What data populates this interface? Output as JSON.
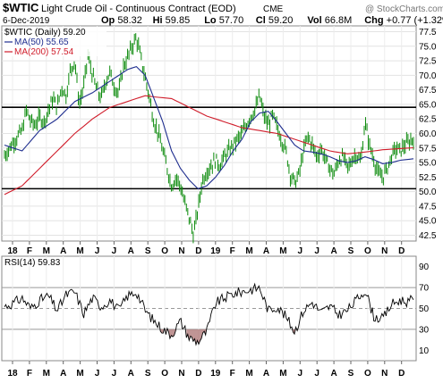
{
  "header": {
    "ticker": "$WTIC",
    "name": "Light Crude Oil - Continuous Contract (EOD)",
    "exchange": "CME",
    "date": "6-Dec-2019",
    "watermark": "@ StockCharts.com",
    "stats": [
      {
        "k": "Op",
        "v": "58.32"
      },
      {
        "k": "Hi",
        "v": "59.85"
      },
      {
        "k": "Lo",
        "v": "57.70"
      },
      {
        "k": "Cl",
        "v": "59.20"
      },
      {
        "k": "Vol",
        "v": "66.8M"
      },
      {
        "k": "Chg",
        "v": "+0.77 (+1.32%)"
      }
    ]
  },
  "colors": {
    "price": "#0b8a0b",
    "ma50": "#1f2e8f",
    "ma200": "#d01c2a",
    "rsi": "#000000",
    "rsi_fill_low": "#b07b7b"
  },
  "chart_data": [
    {
      "type": "line",
      "title": "$WTIC (Daily) 59.20",
      "ylim": [
        41.5,
        78.5
      ],
      "yticks": [
        "42.5",
        "45.0",
        "47.5",
        "50.0",
        "52.5",
        "55.0",
        "57.5",
        "60.0",
        "62.5",
        "65.0",
        "67.5",
        "70.0",
        "72.5",
        "75.0",
        "77.5"
      ],
      "xtick_labels": [
        "18",
        "F",
        "M",
        "A",
        "M",
        "J",
        "J",
        "A",
        "S",
        "O",
        "N",
        "D",
        "19",
        "F",
        "M",
        "A",
        "M",
        "J",
        "J",
        "A",
        "S",
        "O",
        "N",
        "D"
      ],
      "hlines": [
        64.5,
        50.5
      ],
      "price_anchors": [
        [
          0,
          56.2
        ],
        [
          2,
          58.5
        ],
        [
          4,
          60.5
        ],
        [
          5,
          64.0
        ],
        [
          6,
          62.0
        ],
        [
          7,
          61.5
        ],
        [
          8,
          62.8
        ],
        [
          9,
          62.0
        ],
        [
          10,
          64.0
        ],
        [
          11,
          66.0
        ],
        [
          12,
          64.5
        ],
        [
          13,
          68.0
        ],
        [
          14,
          66.5
        ],
        [
          15,
          71.0
        ],
        [
          16,
          72.5
        ],
        [
          17,
          65.0
        ],
        [
          18,
          68.0
        ],
        [
          19,
          73.5
        ],
        [
          20,
          70.0
        ],
        [
          21,
          67.5
        ],
        [
          22,
          66.0
        ],
        [
          23,
          69.0
        ],
        [
          24,
          70.5
        ],
        [
          25,
          68.0
        ],
        [
          26,
          67.0
        ],
        [
          27,
          71.5
        ],
        [
          28,
          73.0
        ],
        [
          29,
          75.0
        ],
        [
          30,
          76.5
        ],
        [
          31,
          73.0
        ],
        [
          32,
          69.5
        ],
        [
          33,
          66.0
        ],
        [
          34,
          62.0
        ],
        [
          35,
          60.0
        ],
        [
          36,
          57.0
        ],
        [
          37,
          54.0
        ],
        [
          38,
          51.0
        ],
        [
          39,
          52.5
        ],
        [
          40,
          51.0
        ],
        [
          41,
          48.0
        ],
        [
          42,
          45.5
        ],
        [
          43,
          42.5
        ],
        [
          44,
          47.0
        ],
        [
          45,
          52.0
        ],
        [
          46,
          53.5
        ],
        [
          47,
          54.5
        ],
        [
          48,
          55.5
        ],
        [
          49,
          54.5
        ],
        [
          50,
          56.0
        ],
        [
          51,
          57.0
        ],
        [
          52,
          58.0
        ],
        [
          53,
          59.0
        ],
        [
          54,
          60.0
        ],
        [
          55,
          61.5
        ],
        [
          56,
          63.0
        ],
        [
          57,
          64.0
        ],
        [
          58,
          66.5
        ],
        [
          59,
          63.0
        ],
        [
          60,
          61.5
        ],
        [
          61,
          63.0
        ],
        [
          62,
          61.0
        ],
        [
          63,
          59.0
        ],
        [
          64,
          57.0
        ],
        [
          65,
          53.0
        ],
        [
          66,
          51.5
        ],
        [
          67,
          53.0
        ],
        [
          68,
          57.0
        ],
        [
          69,
          59.5
        ],
        [
          70,
          58.0
        ],
        [
          71,
          56.0
        ],
        [
          72,
          57.5
        ],
        [
          73,
          55.5
        ],
        [
          74,
          54.0
        ],
        [
          75,
          53.0
        ],
        [
          76,
          55.5
        ],
        [
          77,
          56.0
        ],
        [
          78,
          54.0
        ],
        [
          79,
          55.5
        ],
        [
          80,
          56.5
        ],
        [
          81,
          55.0
        ],
        [
          82,
          62.0
        ],
        [
          83,
          58.0
        ],
        [
          84,
          55.5
        ],
        [
          85,
          53.0
        ],
        [
          86,
          52.5
        ],
        [
          87,
          54.0
        ],
        [
          88,
          56.0
        ],
        [
          89,
          57.5
        ],
        [
          90,
          57.0
        ],
        [
          91,
          58.0
        ],
        [
          92,
          58.5
        ],
        [
          93,
          59.2
        ]
      ],
      "series": [
        {
          "name": "$WTIC (Daily) 59.20",
          "color": "#0b8a0b"
        },
        {
          "name": "MA(50) 55.65",
          "color": "#1f2e8f",
          "anchors": [
            [
              0,
              58.0
            ],
            [
              4,
              57.0
            ],
            [
              8,
              60.5
            ],
            [
              12,
              62.5
            ],
            [
              16,
              65.5
            ],
            [
              20,
              67.0
            ],
            [
              24,
              69.0
            ],
            [
              28,
              71.0
            ],
            [
              30,
              71.5
            ],
            [
              32,
              70.0
            ],
            [
              34,
              66.0
            ],
            [
              36,
              62.0
            ],
            [
              38,
              57.0
            ],
            [
              40,
              54.0
            ],
            [
              42,
              52.0
            ],
            [
              44,
              50.5
            ],
            [
              46,
              51.0
            ],
            [
              48,
              52.5
            ],
            [
              50,
              54.5
            ],
            [
              52,
              57.0
            ],
            [
              54,
              59.0
            ],
            [
              56,
              62.0
            ],
            [
              58,
              63.5
            ],
            [
              60,
              63.8
            ],
            [
              62,
              62.0
            ],
            [
              64,
              60.0
            ],
            [
              66,
              58.0
            ],
            [
              68,
              57.0
            ],
            [
              70,
              56.8
            ],
            [
              72,
              56.5
            ],
            [
              74,
              56.0
            ],
            [
              76,
              55.3
            ],
            [
              78,
              55.0
            ],
            [
              80,
              55.3
            ],
            [
              82,
              56.0
            ],
            [
              84,
              55.5
            ],
            [
              86,
              54.8
            ],
            [
              88,
              55.0
            ],
            [
              90,
              55.4
            ],
            [
              93,
              55.65
            ]
          ]
        },
        {
          "name": "MA(200) 57.54",
          "color": "#d01c2a",
          "anchors": [
            [
              0,
              49.5
            ],
            [
              4,
              51.0
            ],
            [
              8,
              54.0
            ],
            [
              12,
              57.0
            ],
            [
              16,
              60.0
            ],
            [
              20,
              62.5
            ],
            [
              24,
              64.5
            ],
            [
              28,
              65.5
            ],
            [
              32,
              66.5
            ],
            [
              34,
              66.3
            ],
            [
              38,
              66.0
            ],
            [
              42,
              64.5
            ],
            [
              46,
              63.0
            ],
            [
              50,
              62.0
            ],
            [
              54,
              61.0
            ],
            [
              58,
              60.5
            ],
            [
              62,
              60.0
            ],
            [
              66,
              59.0
            ],
            [
              70,
              58.0
            ],
            [
              74,
              57.0
            ],
            [
              78,
              56.5
            ],
            [
              82,
              56.8
            ],
            [
              86,
              57.2
            ],
            [
              90,
              57.4
            ],
            [
              93,
              57.54
            ]
          ]
        }
      ]
    },
    {
      "type": "line",
      "title": "RSI(14) 59.83",
      "ylim": [
        0,
        100
      ],
      "yticks": [
        "10",
        "30",
        "50",
        "70",
        "90"
      ],
      "hlines": [
        30,
        50,
        70
      ],
      "xtick_labels": [
        "18",
        "F",
        "M",
        "A",
        "M",
        "J",
        "J",
        "A",
        "S",
        "O",
        "N",
        "D",
        "19",
        "F",
        "M",
        "A",
        "M",
        "J",
        "J",
        "A",
        "S",
        "O",
        "N",
        "D"
      ],
      "series": [
        {
          "name": "RSI(14) 59.83",
          "color": "#000000",
          "anchors": [
            [
              0,
              52
            ],
            [
              2,
              55
            ],
            [
              4,
              60
            ],
            [
              6,
              50
            ],
            [
              8,
              58
            ],
            [
              10,
              62
            ],
            [
              12,
              48
            ],
            [
              14,
              63
            ],
            [
              16,
              66
            ],
            [
              18,
              45
            ],
            [
              20,
              60
            ],
            [
              22,
              52
            ],
            [
              24,
              58
            ],
            [
              26,
              48
            ],
            [
              28,
              62
            ],
            [
              30,
              66
            ],
            [
              32,
              48
            ],
            [
              34,
              38
            ],
            [
              36,
              30
            ],
            [
              38,
              25
            ],
            [
              40,
              38
            ],
            [
              42,
              22
            ],
            [
              44,
              18
            ],
            [
              46,
              28
            ],
            [
              48,
              55
            ],
            [
              50,
              60
            ],
            [
              52,
              64
            ],
            [
              54,
              66
            ],
            [
              56,
              68
            ],
            [
              58,
              70
            ],
            [
              60,
              48
            ],
            [
              62,
              52
            ],
            [
              64,
              42
            ],
            [
              66,
              28
            ],
            [
              68,
              48
            ],
            [
              70,
              56
            ],
            [
              72,
              46
            ],
            [
              74,
              52
            ],
            [
              76,
              44
            ],
            [
              78,
              48
            ],
            [
              80,
              58
            ],
            [
              82,
              68
            ],
            [
              84,
              42
            ],
            [
              86,
              40
            ],
            [
              88,
              54
            ],
            [
              90,
              58
            ],
            [
              92,
              56
            ],
            [
              93,
              59.83
            ]
          ]
        }
      ]
    }
  ]
}
